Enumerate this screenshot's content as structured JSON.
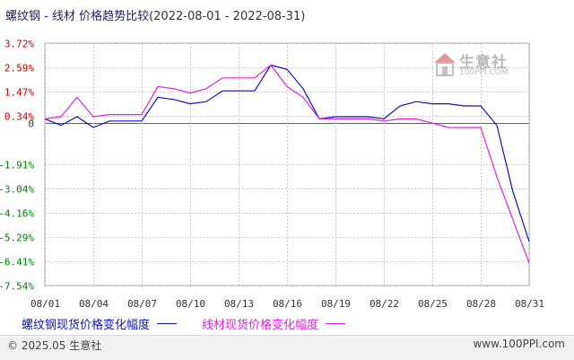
{
  "title": {
    "main": "螺纹钢 - 线材 价格趋势比较",
    "range": "(2022-08-01 - 2022-08-31)"
  },
  "watermark": {
    "name": "生意社",
    "url": "100PPI.COM"
  },
  "footer": {
    "copyright": "© 2025.05 生意社",
    "site": "www.100PPI.com"
  },
  "colors": {
    "series1": "#1010c0",
    "series2": "#e020e0",
    "positive_tick": "#c00000",
    "negative_tick": "#008000",
    "zero_line": "#606060"
  },
  "chart_data": {
    "type": "line",
    "title": "螺纹钢 - 线材 价格趋势比较",
    "ylim": [
      -7.54,
      3.72
    ],
    "yticks": [
      {
        "label": "3.72%",
        "value": 3.72
      },
      {
        "label": "2.59%",
        "value": 2.59
      },
      {
        "label": "1.47%",
        "value": 1.47
      },
      {
        "label": "0.34%",
        "value": 0.34
      },
      {
        "label": "0",
        "value": 0
      },
      {
        "label": "-1.91%",
        "value": -1.91
      },
      {
        "label": "-3.04%",
        "value": -3.04
      },
      {
        "label": "-4.16%",
        "value": -4.16
      },
      {
        "label": "-5.29%",
        "value": -5.29
      },
      {
        "label": "-6.41%",
        "value": -6.41
      },
      {
        "label": "-7.54%",
        "value": -7.54
      }
    ],
    "xticks": [
      "08/01",
      "08/04",
      "08/07",
      "08/10",
      "08/13",
      "08/16",
      "08/19",
      "08/22",
      "08/25",
      "08/28",
      "08/31"
    ],
    "grid": true,
    "legend_position": "bottom-left",
    "x": [
      "08/01",
      "08/02",
      "08/03",
      "08/04",
      "08/05",
      "08/06",
      "08/07",
      "08/08",
      "08/09",
      "08/10",
      "08/11",
      "08/12",
      "08/13",
      "08/14",
      "08/15",
      "08/16",
      "08/17",
      "08/18",
      "08/19",
      "08/20",
      "08/21",
      "08/22",
      "08/23",
      "08/24",
      "08/25",
      "08/26",
      "08/27",
      "08/28",
      "08/29",
      "08/30",
      "08/31"
    ],
    "series": [
      {
        "name": "螺纹钢现货价格变化幅度",
        "values": [
          0.2,
          -0.1,
          0.3,
          -0.2,
          0.1,
          0.1,
          0.1,
          1.2,
          1.1,
          0.9,
          1.0,
          1.5,
          1.5,
          1.5,
          2.7,
          2.5,
          1.6,
          0.2,
          0.3,
          0.3,
          0.3,
          0.2,
          0.8,
          1.0,
          0.9,
          0.9,
          0.8,
          0.8,
          -0.1,
          -3.2,
          -5.5
        ]
      },
      {
        "name": "线材现货价格变化幅度",
        "values": [
          0.2,
          0.3,
          1.2,
          0.3,
          0.4,
          0.4,
          0.4,
          1.7,
          1.6,
          1.4,
          1.6,
          2.1,
          2.1,
          2.1,
          2.7,
          1.7,
          1.2,
          0.2,
          0.2,
          0.2,
          0.2,
          0.1,
          0.2,
          0.2,
          0.0,
          -0.2,
          -0.2,
          -0.2,
          -2.5,
          -4.5,
          -6.5
        ]
      }
    ]
  }
}
